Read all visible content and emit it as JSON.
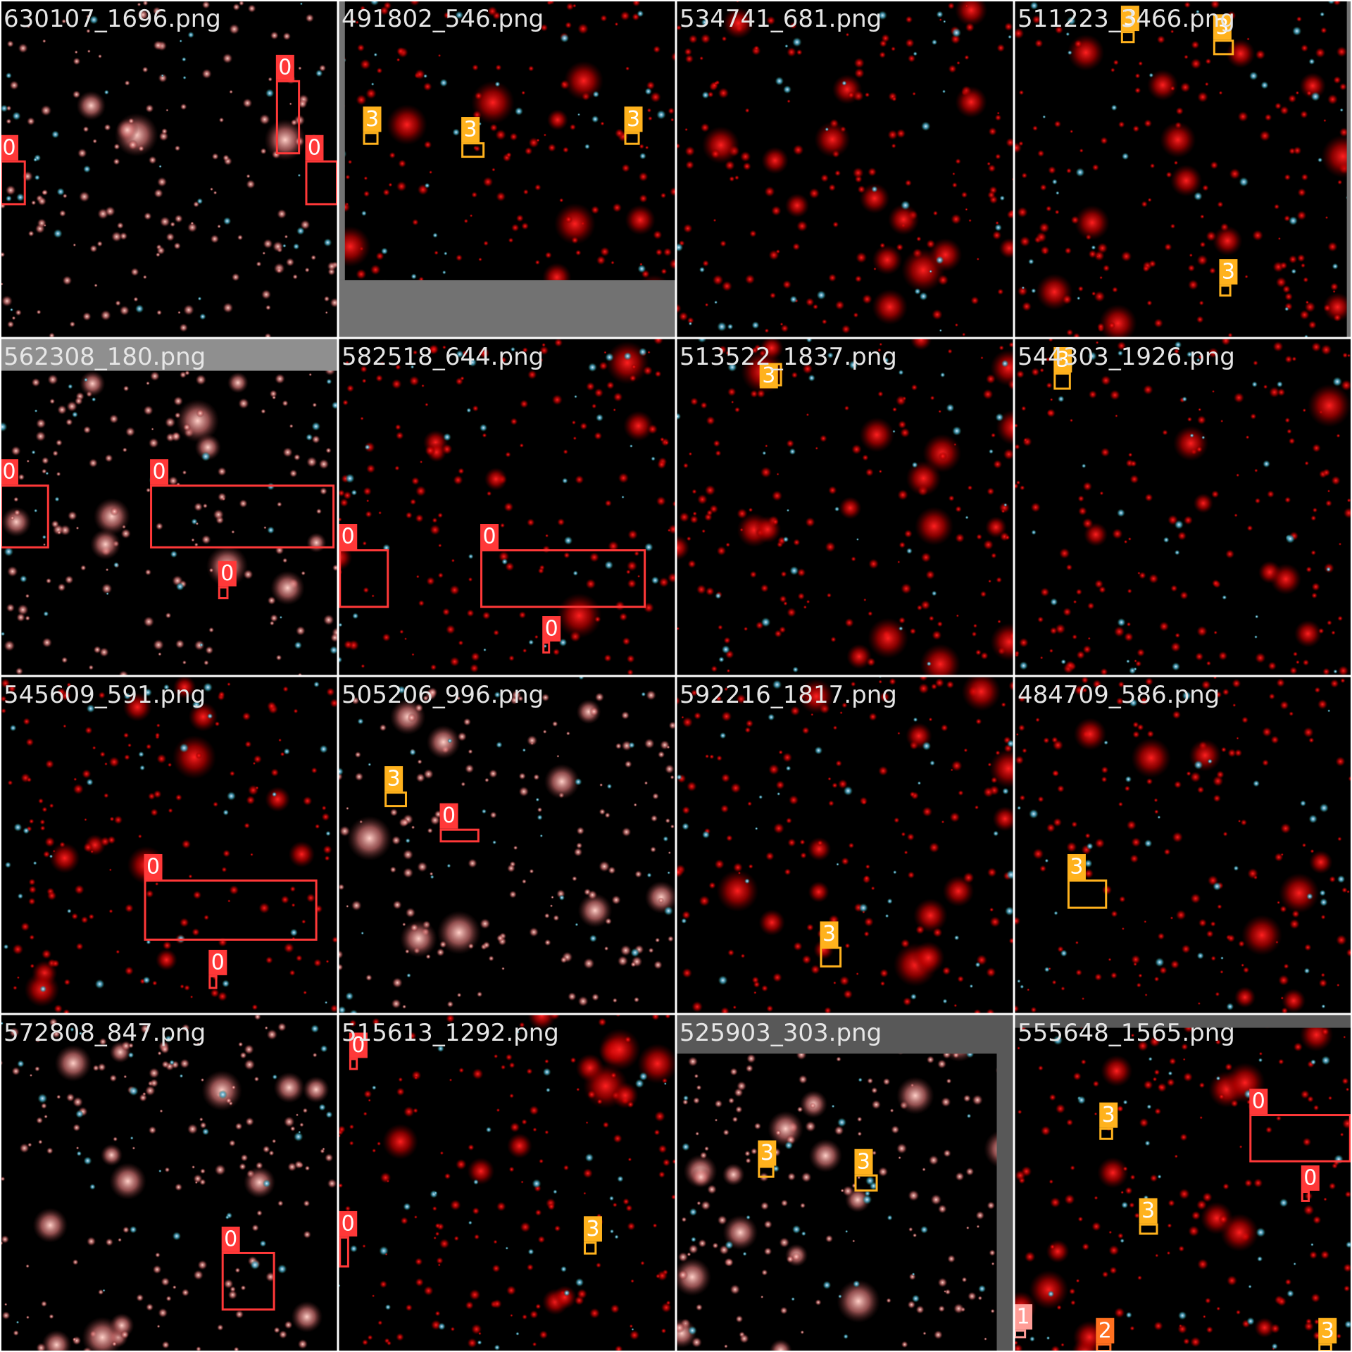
{
  "class_colors": {
    "0": "#ff3838",
    "1": "#ff9d97",
    "2": "#ff701f",
    "3": "#ffb21d"
  },
  "tiles": [
    {
      "filename": "630107_1696.png",
      "boxes": [
        {
          "label": "0"
        },
        {
          "label": "0"
        },
        {
          "label": "0"
        }
      ]
    },
    {
      "filename": "491802_546.png",
      "boxes": [
        {
          "label": "3"
        },
        {
          "label": "3"
        },
        {
          "label": "3"
        }
      ]
    },
    {
      "filename": "534741_681.png",
      "boxes": []
    },
    {
      "filename": "511223_3466.png",
      "boxes": [
        {
          "label": "3"
        },
        {
          "label": "3"
        },
        {
          "label": "3"
        }
      ]
    },
    {
      "filename": "562308_180.png",
      "boxes": [
        {
          "label": "0"
        },
        {
          "label": "0"
        },
        {
          "label": "0"
        }
      ]
    },
    {
      "filename": "582518_644.png",
      "boxes": [
        {
          "label": "0"
        },
        {
          "label": "0"
        },
        {
          "label": "0"
        }
      ]
    },
    {
      "filename": "513522_1837.png",
      "boxes": [
        {
          "label": "3"
        }
      ]
    },
    {
      "filename": "544303_1926.png",
      "boxes": [
        {
          "label": "3"
        }
      ]
    },
    {
      "filename": "545609_591.png",
      "boxes": [
        {
          "label": "0"
        },
        {
          "label": "0"
        }
      ]
    },
    {
      "filename": "505206_996.png",
      "boxes": [
        {
          "label": "3"
        },
        {
          "label": "0"
        }
      ]
    },
    {
      "filename": "592216_1817.png",
      "boxes": [
        {
          "label": "3"
        }
      ]
    },
    {
      "filename": "484709_586.png",
      "boxes": [
        {
          "label": "3"
        }
      ]
    },
    {
      "filename": "572808_847.png",
      "boxes": [
        {
          "label": "0"
        }
      ]
    },
    {
      "filename": "515613_1292.png",
      "boxes": [
        {
          "label": "0"
        },
        {
          "label": "0"
        },
        {
          "label": "3"
        }
      ]
    },
    {
      "filename": "525903_303.png",
      "boxes": [
        {
          "label": "3"
        },
        {
          "label": "3"
        }
      ]
    },
    {
      "filename": "555648_1565.png",
      "boxes": [
        {
          "label": "0"
        },
        {
          "label": "3"
        },
        {
          "label": "3"
        },
        {
          "label": "0"
        },
        {
          "label": "1"
        },
        {
          "label": "2"
        },
        {
          "label": "3"
        }
      ]
    }
  ]
}
